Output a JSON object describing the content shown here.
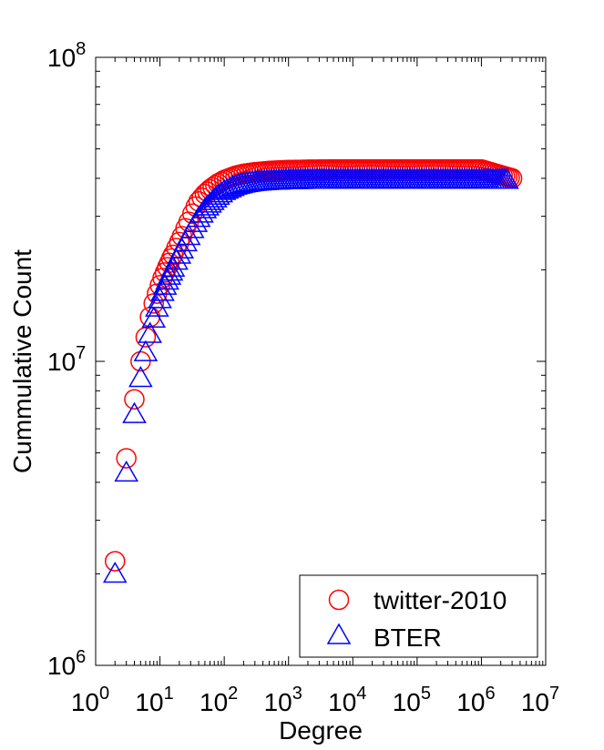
{
  "chart_data": {
    "type": "scatter",
    "title": "",
    "xlabel": "Degree",
    "ylabel": "Cummulative Count",
    "xscale": "log",
    "yscale": "log",
    "xlim": [
      1,
      10000000
    ],
    "ylim": [
      1000000,
      100000000
    ],
    "x_ticks": [
      {
        "base": "10",
        "exp": "0"
      },
      {
        "base": "10",
        "exp": "1"
      },
      {
        "base": "10",
        "exp": "2"
      },
      {
        "base": "10",
        "exp": "3"
      },
      {
        "base": "10",
        "exp": "4"
      },
      {
        "base": "10",
        "exp": "5"
      },
      {
        "base": "10",
        "exp": "6"
      },
      {
        "base": "10",
        "exp": "7"
      }
    ],
    "y_ticks": [
      {
        "base": "10",
        "exp": "6"
      },
      {
        "base": "10",
        "exp": "7"
      },
      {
        "base": "10",
        "exp": "8"
      }
    ],
    "legend_position": "bottom-right",
    "series": [
      {
        "name": "twitter-2010",
        "marker": "circle",
        "color": "#ff0000",
        "x": [
          2,
          3,
          4,
          5,
          6,
          7,
          8,
          9,
          10,
          11,
          12,
          13,
          14,
          15,
          16,
          18,
          20,
          22,
          25,
          28,
          32,
          36,
          40,
          50,
          60,
          80,
          100,
          150,
          200,
          300,
          500,
          1000,
          2000,
          5000,
          10000,
          30000,
          100000,
          300000,
          1000000,
          3000000
        ],
        "y": [
          2200000,
          4800000,
          7500000,
          10000000,
          12000000,
          14000000,
          15500000,
          16700000,
          17800000,
          18800000,
          19600000,
          20400000,
          21100000,
          21800000,
          22400000,
          23600000,
          24700000,
          25800000,
          27400000,
          28800000,
          30600000,
          32300000,
          33600000,
          35500000,
          36800000,
          38500000,
          39500000,
          40800000,
          41400000,
          41900000,
          42300000,
          42600000,
          42700000,
          42800000,
          42800000,
          42800000,
          42800000,
          42800000,
          42800000,
          40000000
        ]
      },
      {
        "name": "BTER",
        "marker": "triangle",
        "color": "#0000ff",
        "x": [
          2,
          3,
          4,
          5,
          6,
          7,
          8,
          9,
          10,
          11,
          12,
          13,
          14,
          15,
          16,
          18,
          20,
          22,
          25,
          28,
          32,
          36,
          40,
          50,
          60,
          80,
          100,
          150,
          200,
          300,
          500,
          1000,
          2000,
          5000,
          10000,
          30000,
          100000,
          300000,
          1000000,
          2500000
        ],
        "y": [
          2000000,
          4300000,
          6700000,
          8800000,
          10700000,
          12300000,
          13800000,
          15000000,
          16000000,
          16900000,
          17700000,
          18400000,
          19100000,
          19700000,
          20300000,
          21400000,
          22400000,
          23300000,
          24600000,
          25800000,
          27200000,
          28500000,
          29600000,
          31600000,
          33000000,
          35000000,
          36300000,
          37800000,
          38400000,
          38900000,
          39200000,
          39400000,
          39500000,
          39500000,
          39500000,
          39500000,
          39500000,
          39500000,
          39500000,
          39500000
        ]
      }
    ]
  }
}
